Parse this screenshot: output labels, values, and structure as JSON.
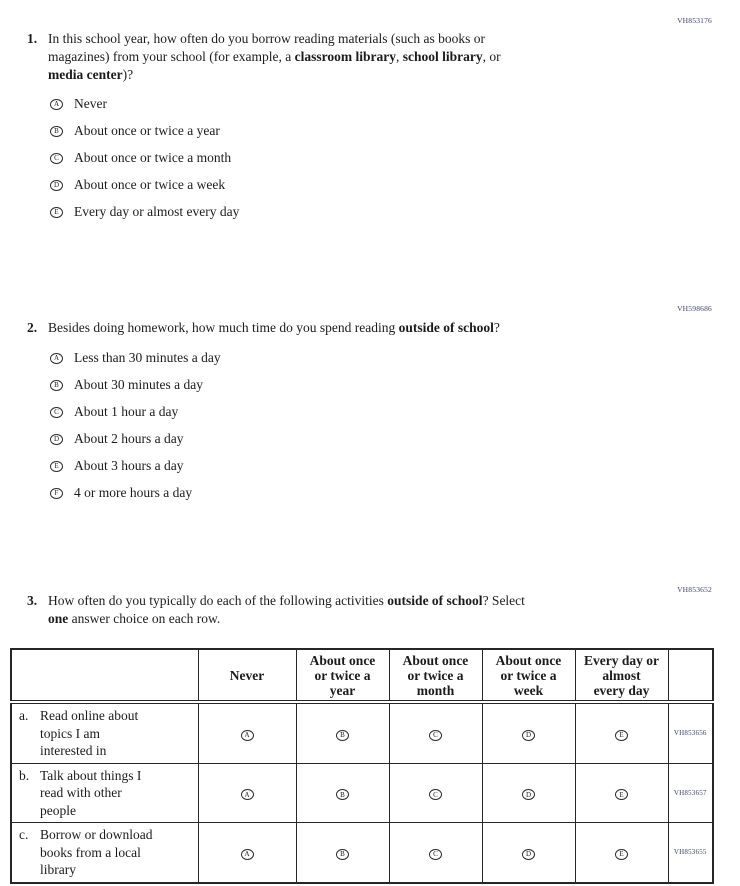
{
  "colors": {
    "page_background": "#ffffff",
    "text": "#1b1b1b",
    "item_code": "#3b3f6e",
    "table_border": "#262626"
  },
  "questions": [
    {
      "number": "1.",
      "code": "VH853176",
      "text_segments": [
        {
          "text": "In this school year, how often do you borrow reading materials (such as books or"
        },
        {
          "br": true
        },
        {
          "text": "magazines) from your school (for example, a "
        },
        {
          "text": "classroom library",
          "bold": true
        },
        {
          "text": ", "
        },
        {
          "text": "school library",
          "bold": true
        },
        {
          "text": ", or"
        },
        {
          "br": true
        },
        {
          "text": "media center",
          "bold": true
        },
        {
          "text": ")?"
        }
      ],
      "options": [
        {
          "letter": "A",
          "label": "Never"
        },
        {
          "letter": "B",
          "label": "About once or twice a year"
        },
        {
          "letter": "C",
          "label": "About once or twice a month"
        },
        {
          "letter": "D",
          "label": "About once or twice a week"
        },
        {
          "letter": "E",
          "label": "Every day or almost every day"
        }
      ]
    },
    {
      "number": "2.",
      "code": "VH598686",
      "text_segments": [
        {
          "text": "Besides doing homework, how much time do you spend reading "
        },
        {
          "text": "outside of school",
          "bold": true
        },
        {
          "text": "?"
        }
      ],
      "options": [
        {
          "letter": "A",
          "label": "Less than 30 minutes a day"
        },
        {
          "letter": "B",
          "label": "About 30 minutes a day"
        },
        {
          "letter": "C",
          "label": "About 1 hour a day"
        },
        {
          "letter": "D",
          "label": "About 2 hours a day"
        },
        {
          "letter": "E",
          "label": "About 3 hours a day"
        },
        {
          "letter": "F",
          "label": "4 or more hours a day"
        }
      ]
    },
    {
      "number": "3.",
      "code": "VH853652",
      "text_segments": [
        {
          "text": "How often do you typically do each of the following activities "
        },
        {
          "text": "outside of school",
          "bold": true
        },
        {
          "text": "? Select"
        },
        {
          "br": true
        },
        {
          "text": "one",
          "bold": true
        },
        {
          "text": " answer choice on each row."
        }
      ]
    }
  ],
  "table": {
    "column_headers": [
      [
        ""
      ],
      [
        "Never"
      ],
      [
        "About once",
        "or twice a",
        "year"
      ],
      [
        "About once",
        "or twice a",
        "month"
      ],
      [
        "About once",
        "or twice a",
        "week"
      ],
      [
        "Every day or",
        "almost",
        "every day"
      ],
      [
        ""
      ]
    ],
    "option_letters": [
      "A",
      "B",
      "C",
      "D",
      "E"
    ],
    "rows": [
      {
        "prefix": "a.",
        "label_lines": [
          "Read online about",
          "topics I am",
          "interested in"
        ],
        "code": "VH853656"
      },
      {
        "prefix": "b.",
        "label_lines": [
          "Talk about things I",
          "read with other",
          "people"
        ],
        "code": "VH853657"
      },
      {
        "prefix": "c.",
        "label_lines": [
          "Borrow or download",
          "books from a local",
          "library"
        ],
        "code": "VH853655"
      }
    ]
  }
}
